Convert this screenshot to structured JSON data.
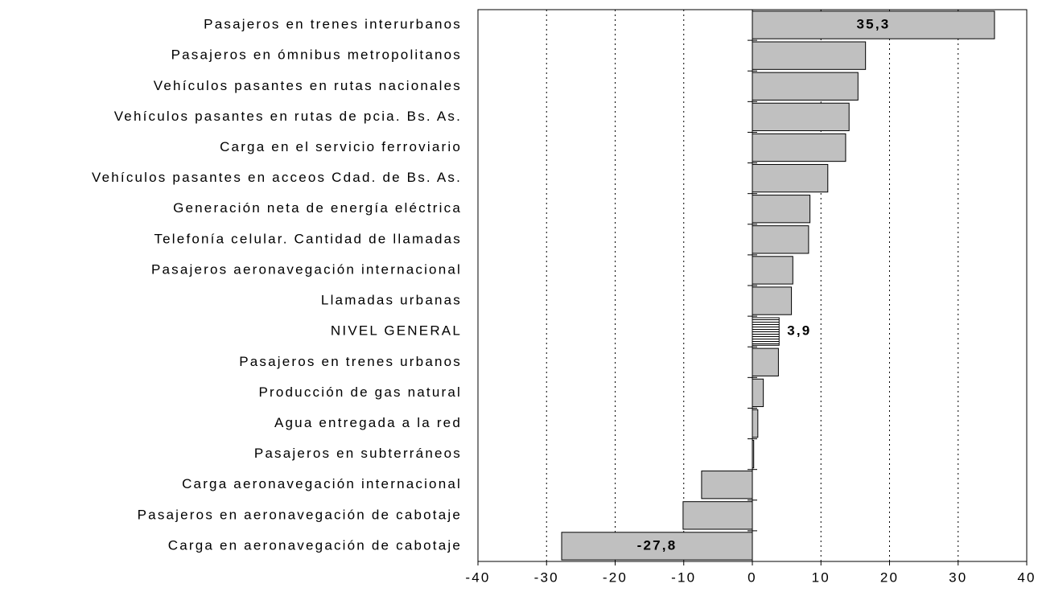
{
  "chart_data": {
    "type": "barh",
    "categories": [
      "Pasajeros en trenes interurbanos",
      "Pasajeros en ómnibus metropolitanos",
      "Vehículos pasantes en rutas nacionales",
      "Vehículos pasantes en rutas de pcia. Bs. As.",
      "Carga en el servicio ferroviario",
      "Vehículos pasantes en acceos Cdad. de Bs. As.",
      "Generación neta de energía eléctrica",
      "Telefonía celular. Cantidad de llamadas",
      "Pasajeros aeronavegación internacional",
      "Llamadas urbanas",
      "NIVEL GENERAL",
      "Pasajeros en trenes urbanos",
      "Producción de gas natural",
      "Agua entregada a la red",
      "Pasajeros en subterráneos",
      "Carga aeronavegación internacional",
      "Pasajeros en aeronavegación de cabotaje",
      "Carga en aeronavegación de cabotaje"
    ],
    "values": [
      35.3,
      16.5,
      15.4,
      14.1,
      13.6,
      11.0,
      8.4,
      8.2,
      5.9,
      5.7,
      3.9,
      3.8,
      1.6,
      0.8,
      0.2,
      -7.4,
      -10.1,
      -27.8
    ],
    "value_labels": [
      "35,3",
      null,
      null,
      null,
      null,
      null,
      null,
      null,
      null,
      null,
      "3,9",
      null,
      null,
      null,
      null,
      null,
      null,
      "-27,8"
    ],
    "color": "#c0c0c0",
    "hatched": [
      false,
      false,
      false,
      false,
      false,
      false,
      false,
      false,
      false,
      false,
      true,
      false,
      false,
      false,
      false,
      false,
      false,
      false
    ],
    "xlim": [
      -40,
      40
    ],
    "xticks": [
      -40,
      -30,
      -20,
      -10,
      0,
      10,
      20,
      30,
      40
    ],
    "grid": true
  }
}
